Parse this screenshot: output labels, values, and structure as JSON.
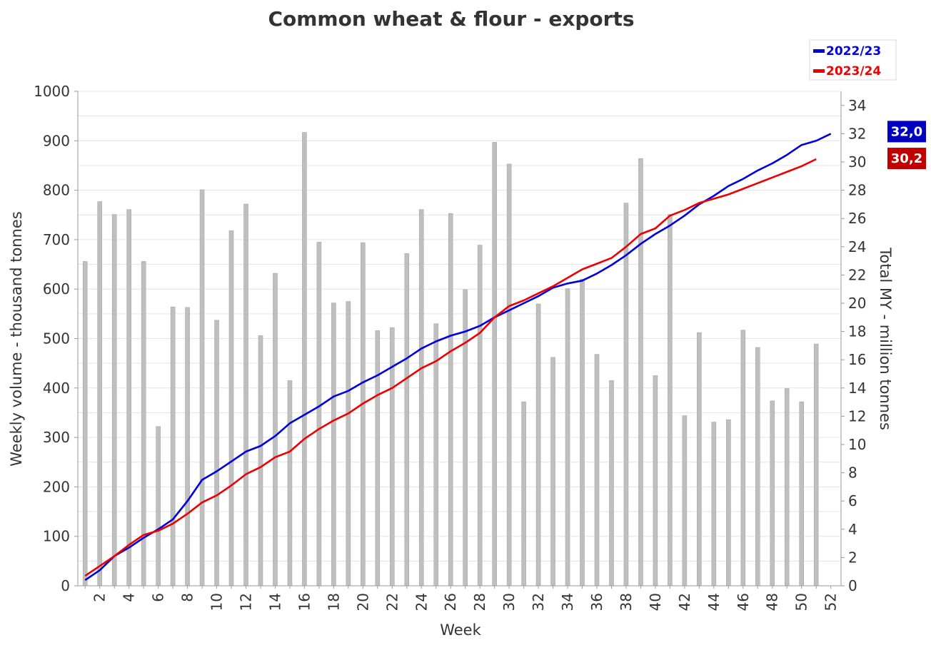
{
  "chart_data": {
    "type": "bar",
    "title": "Common wheat & flour - exports",
    "xlabel": "Week",
    "ylabel": "Weekly volume - thousand tonnes",
    "y2label": "Total MY - million tonnes",
    "ylim": [
      0,
      1000
    ],
    "y2lim": [
      0,
      35
    ],
    "grid": true,
    "legend_position": "top-right",
    "x_ticks": [
      2,
      4,
      6,
      8,
      10,
      12,
      14,
      16,
      18,
      20,
      22,
      24,
      26,
      28,
      30,
      32,
      34,
      36,
      38,
      40,
      42,
      44,
      46,
      48,
      50,
      52
    ],
    "y_ticks": [
      0,
      100,
      200,
      300,
      400,
      500,
      600,
      700,
      800,
      900,
      1000
    ],
    "y2_ticks": [
      0,
      2,
      4,
      6,
      8,
      10,
      12,
      14,
      16,
      18,
      20,
      22,
      24,
      26,
      28,
      30,
      32,
      34
    ],
    "weeks": [
      1,
      2,
      3,
      4,
      5,
      6,
      7,
      8,
      9,
      10,
      11,
      12,
      13,
      14,
      15,
      16,
      17,
      18,
      19,
      20,
      21,
      22,
      23,
      24,
      25,
      26,
      27,
      28,
      29,
      30,
      31,
      32,
      33,
      34,
      35,
      36,
      37,
      38,
      39,
      40,
      41,
      42,
      43,
      44,
      45,
      46,
      47,
      48,
      49,
      50,
      51,
      52
    ],
    "bars": {
      "name": "Weekly volume",
      "color": "#bfbfbf",
      "values": [
        656,
        777,
        751,
        761,
        656,
        322,
        564,
        563,
        801,
        537,
        718,
        772,
        506,
        632,
        415,
        917,
        695,
        572,
        575,
        694,
        516,
        522,
        672,
        761,
        530,
        753,
        599,
        689,
        897,
        853,
        372,
        570,
        462,
        601,
        620,
        468,
        415,
        774,
        864,
        425,
        751,
        344,
        512,
        331,
        336,
        517,
        482,
        374,
        399,
        372,
        489,
        0
      ]
    },
    "series": [
      {
        "name": "2022/23",
        "color": "#0000e0",
        "end_label": "32,0",
        "end_label_color": "#0000c0",
        "values": [
          0.4,
          1.1,
          2.1,
          2.7,
          3.4,
          4.0,
          4.7,
          6.0,
          7.5,
          8.1,
          8.8,
          9.5,
          9.9,
          10.6,
          11.5,
          12.1,
          12.7,
          13.4,
          13.8,
          14.4,
          14.9,
          15.5,
          16.1,
          16.8,
          17.3,
          17.7,
          18.0,
          18.4,
          19.0,
          19.5,
          20.0,
          20.5,
          21.1,
          21.4,
          21.6,
          22.1,
          22.7,
          23.4,
          24.2,
          24.9,
          25.5,
          26.2,
          27.0,
          27.6,
          28.3,
          28.8,
          29.4,
          29.9,
          30.5,
          31.2,
          31.5,
          32.0
        ]
      },
      {
        "name": "2023/24",
        "color": "#ee0000",
        "end_label": "30,2",
        "end_label_color": "#c00000",
        "values": [
          0.7,
          1.4,
          2.1,
          2.9,
          3.6,
          3.9,
          4.4,
          5.1,
          5.9,
          6.4,
          7.1,
          7.9,
          8.4,
          9.1,
          9.5,
          10.4,
          11.1,
          11.7,
          12.2,
          12.9,
          13.5,
          14.0,
          14.7,
          15.4,
          15.9,
          16.6,
          17.2,
          17.9,
          19.0,
          19.8,
          20.2,
          20.7,
          21.2,
          21.8,
          22.4,
          22.8,
          23.2,
          24.0,
          24.9,
          25.3,
          26.2,
          26.6,
          27.1,
          27.4,
          27.7,
          28.1,
          28.5,
          28.9,
          29.3,
          29.7,
          30.2
        ]
      }
    ]
  }
}
